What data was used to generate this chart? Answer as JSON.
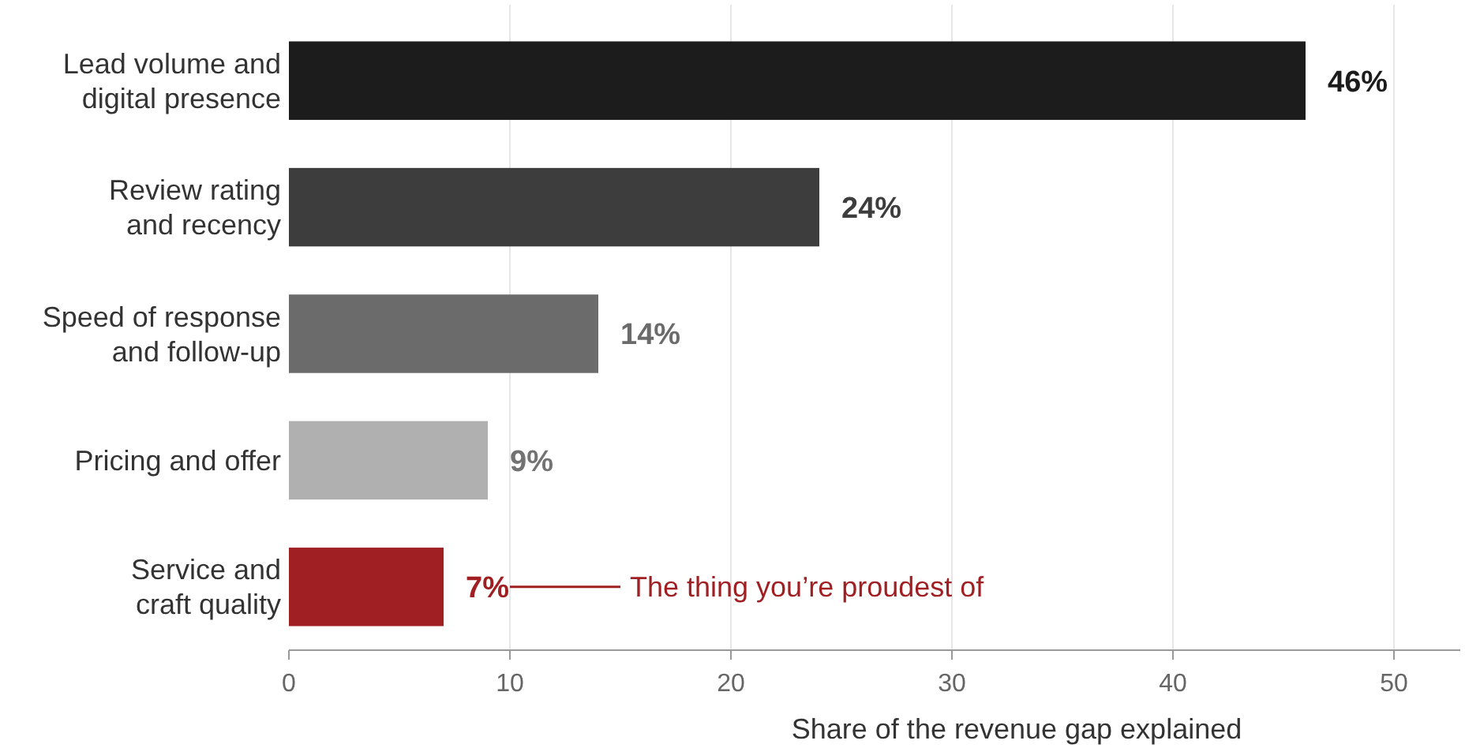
{
  "chart_data": {
    "type": "bar",
    "orientation": "horizontal",
    "categories": [
      "Lead volume and digital presence",
      "Review rating and recency",
      "Speed of response and follow-up",
      "Pricing and offer",
      "Service and craft quality"
    ],
    "values": [
      46,
      24,
      14,
      9,
      7
    ],
    "colors": [
      "#1c1c1c",
      "#3d3d3d",
      "#6b6b6b",
      "#b0b0b0",
      "#a01f22"
    ],
    "value_labels": [
      "46%",
      "24%",
      "14%",
      "9%",
      "7%"
    ],
    "xlim": [
      0,
      53
    ],
    "xticks": [
      0,
      10,
      20,
      30,
      40,
      50
    ],
    "grid": "x",
    "xlabel": "Share of the revenue gap explained",
    "annotations": [
      "The thing you’re proudest of"
    ]
  }
}
